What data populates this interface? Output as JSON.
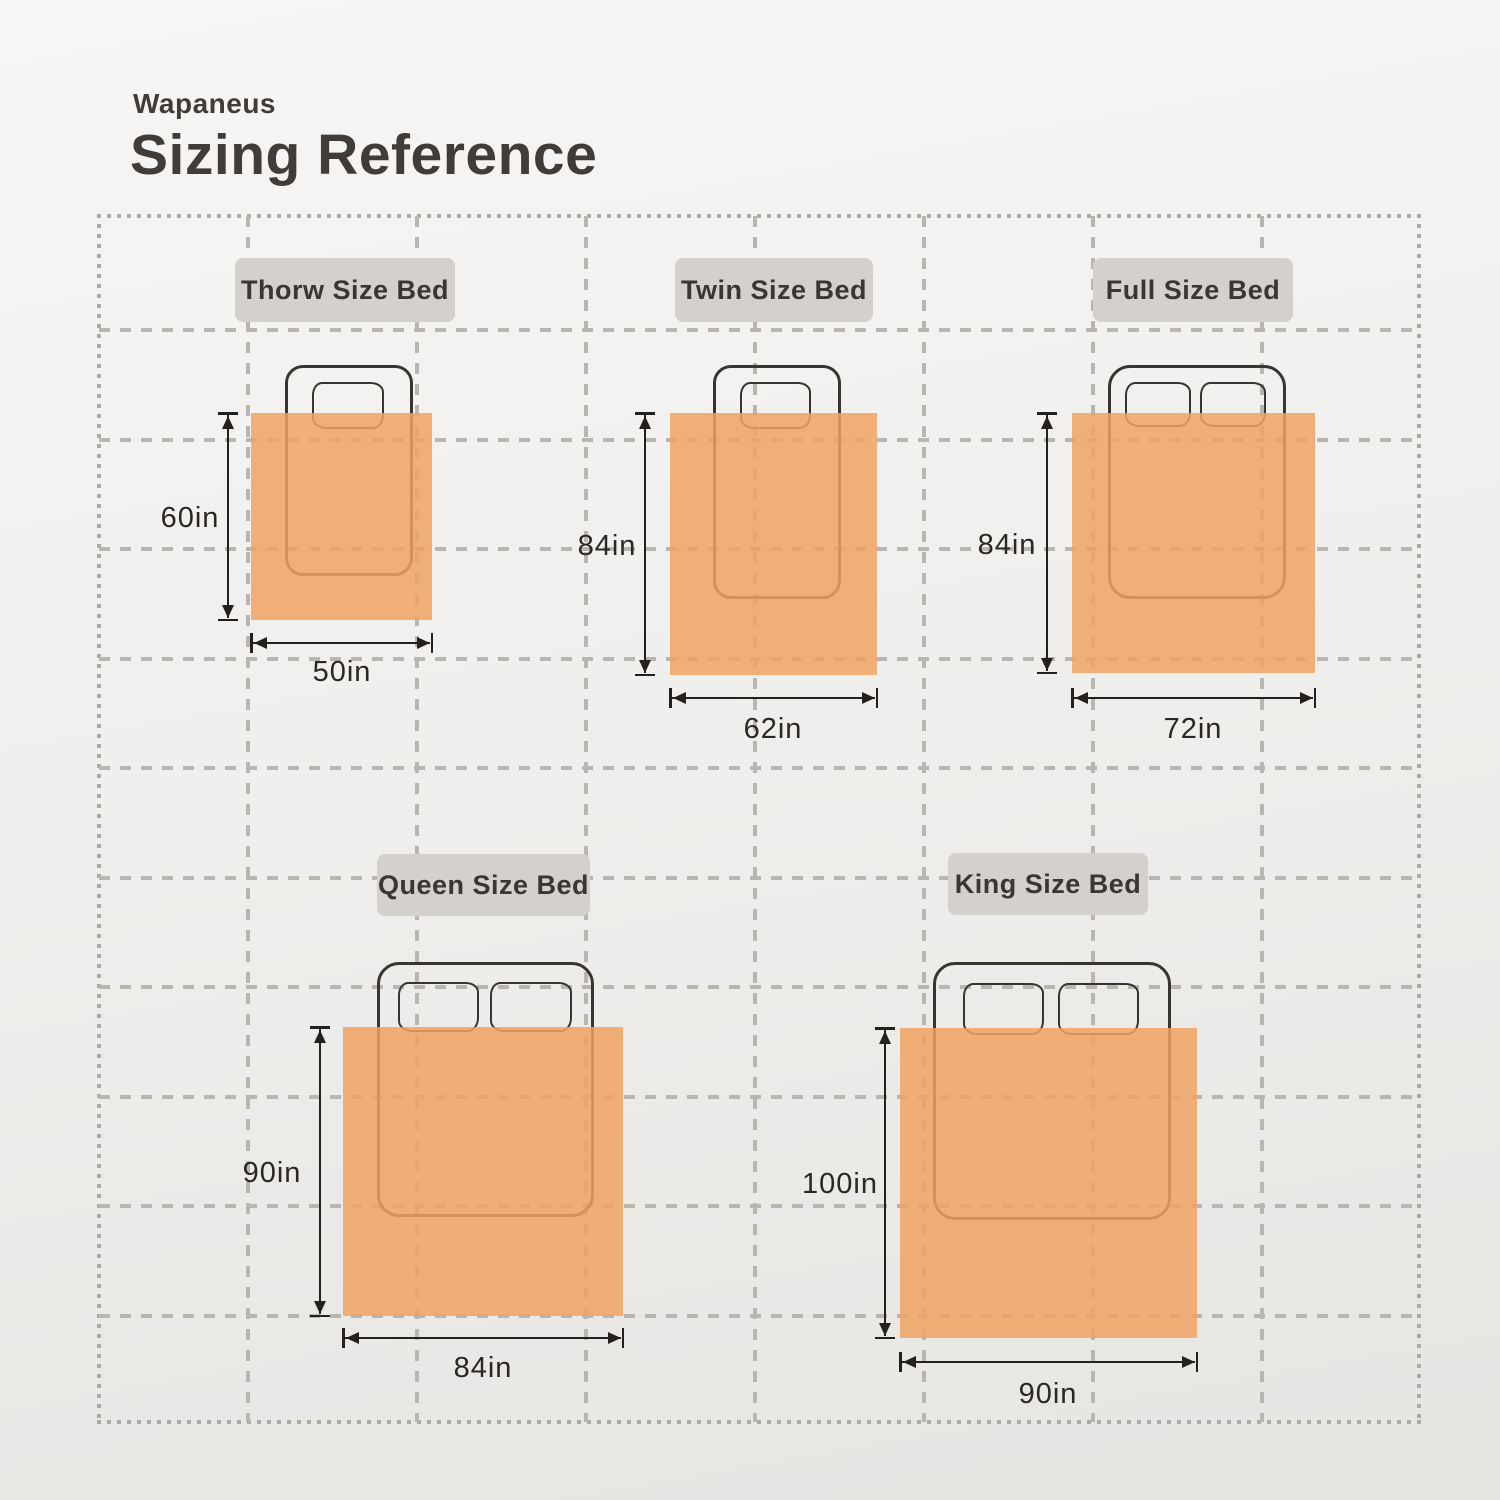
{
  "header": {
    "brand": "Wapaneus",
    "title": "Sizing Reference"
  },
  "colors": {
    "blanket_orange": "#F0A76F",
    "label_chip_bg": "#D4D0CB",
    "heading_text": "#413C37",
    "grid_line": "#B9B6B2",
    "outline": "#383430"
  },
  "beds": [
    {
      "name": "throw",
      "label": "Thorw Size Bed",
      "length": "60in",
      "width": "50in",
      "pillows": 1
    },
    {
      "name": "twin",
      "label": "Twin Size Bed",
      "length": "84in",
      "width": "62in",
      "pillows": 1
    },
    {
      "name": "full",
      "label": "Full Size Bed",
      "length": "84in",
      "width": "72in",
      "pillows": 2
    },
    {
      "name": "queen",
      "label": "Queen Size Bed",
      "length": "90in",
      "width": "84in",
      "pillows": 2
    },
    {
      "name": "king",
      "label": "King Size Bed",
      "length": "100in",
      "width": "90in",
      "pillows": 2
    }
  ]
}
